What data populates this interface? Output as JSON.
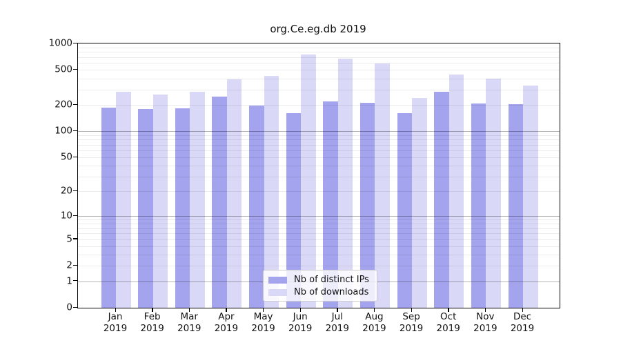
{
  "title": "org.Ce.eg.db 2019",
  "chart_data": {
    "type": "bar",
    "title": "org.Ce.eg.db 2019",
    "xlabel": "",
    "ylabel": "",
    "y_scale": "log1p",
    "ylim": [
      0,
      1000
    ],
    "yticks": [
      0,
      1,
      2,
      5,
      10,
      20,
      50,
      100,
      200,
      500,
      1000
    ],
    "grid": "horizontal, log minor + major decades",
    "legend_position": "lower center",
    "year": "2019",
    "categories": [
      "Jan",
      "Feb",
      "Mar",
      "Apr",
      "May",
      "Jun",
      "Jul",
      "Aug",
      "Sep",
      "Oct",
      "Nov",
      "Dec"
    ],
    "series": [
      {
        "name": "Nb of distinct IPs",
        "color": "#a3a3ee",
        "values": [
          186,
          178,
          184,
          248,
          198,
          160,
          220,
          213,
          162,
          280,
          206,
          202
        ]
      },
      {
        "name": "Nb of downloads",
        "color": "#d9d9f7",
        "values": [
          283,
          263,
          284,
          390,
          430,
          745,
          670,
          590,
          240,
          445,
          400,
          335
        ]
      }
    ]
  },
  "legend": {
    "items": [
      "Nb of distinct IPs",
      "Nb of downloads"
    ]
  }
}
